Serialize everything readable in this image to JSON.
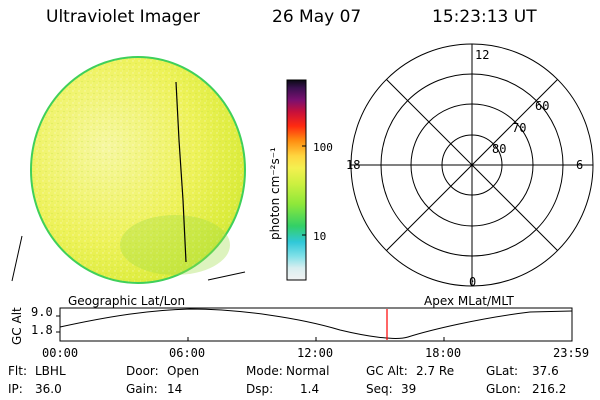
{
  "header": {
    "title": "Ultraviolet Imager",
    "date": "26 May 07",
    "time": "15:23:13 UT"
  },
  "colorbar": {
    "label": "photon cm⁻²s⁻¹",
    "ticks": [
      "100",
      "10"
    ]
  },
  "polar_plot": {
    "mlt_labels": [
      "12",
      "18",
      "6",
      "0"
    ],
    "lat_labels": [
      "60",
      "70",
      "80"
    ]
  },
  "orbit_plot": {
    "left_title": "Geographic Lat/Lon",
    "right_title": "Apex MLat/MLT",
    "ylabel": "GC Alt",
    "yticks": [
      "9.0",
      "1.8"
    ],
    "xticks": [
      "00:00",
      "06:00",
      "12:00",
      "18:00",
      "23:59"
    ]
  },
  "info": {
    "row1": [
      {
        "label": "Flt:",
        "value": "LBHL"
      },
      {
        "label": "Door:",
        "value": "Open"
      },
      {
        "label": "Mode:",
        "value": "Normal"
      },
      {
        "label": "GC Alt:",
        "value": "2.7 Re"
      },
      {
        "label": "GLat:",
        "value": "37.6"
      }
    ],
    "row2": [
      {
        "label": "IP:",
        "value": "36.0"
      },
      {
        "label": "Gain:",
        "value": "14"
      },
      {
        "label": "Dsp:",
        "value": "1.4"
      },
      {
        "label": "Seq:",
        "value": "39"
      },
      {
        "label": "GLon:",
        "value": "216.2"
      }
    ]
  },
  "colors": {
    "disk": "#eef25a",
    "disk_edge": "#3fd05a",
    "time_marker": "#ff0000"
  }
}
